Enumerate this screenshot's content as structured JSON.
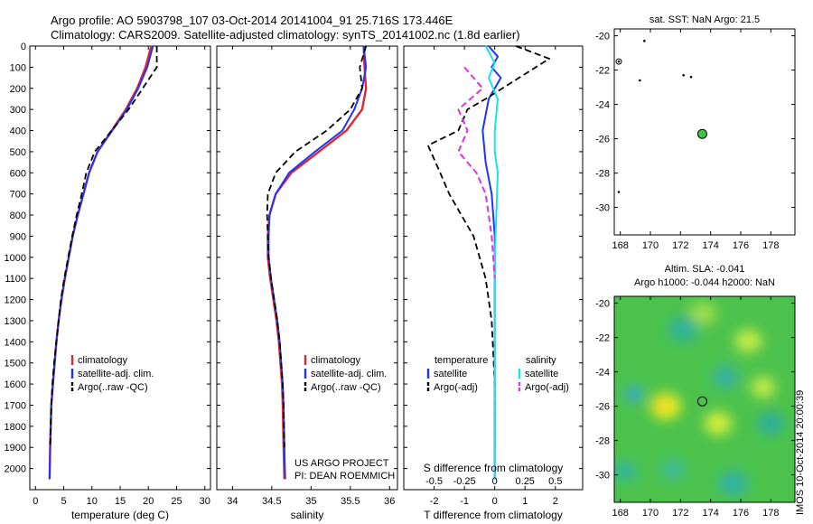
{
  "header": {
    "line1": "Argo profile: AO 5903798_107 03-Oct-2014 20141004_91 25.716S 173.446E",
    "line2": "Climatology: CARS2009. Satellite-adjusted climatology: synTS_20141002.nc (1.8d earlier)"
  },
  "watermark": "IMOS 10-Oct-2014 20:00:39",
  "credits": {
    "line1": "US ARGO PROJECT",
    "line2": "PI: DEAN ROEMMICH"
  },
  "colors": {
    "climatology": "#e0282f",
    "satellite": "#1f33ff",
    "argo": "#000000",
    "cyan": "#19e3e3",
    "magenta": "#e62ee6",
    "float": "#3cc83c"
  },
  "chart_data": [
    {
      "type": "line",
      "xlabel": "temperature (deg C)",
      "ylabel": "",
      "xlim": [
        -1,
        31
      ],
      "ylim": [
        2100,
        0
      ],
      "xticks": [
        "0",
        "5",
        "10",
        "15",
        "20",
        "25",
        "30"
      ],
      "yticks": [
        "0",
        "100",
        "200",
        "300",
        "400",
        "500",
        "600",
        "700",
        "800",
        "900",
        "1000",
        "1100",
        "1200",
        "1300",
        "1400",
        "1500",
        "1600",
        "1700",
        "1800",
        "1900",
        "2000"
      ],
      "legend": [
        "climatology",
        "satellite-adj. clim.",
        "Argo(..raw -QC)"
      ],
      "series": [
        {
          "name": "climatology",
          "style": "climatology",
          "x": [
            20.5,
            19.5,
            18.0,
            16.0,
            13.5,
            11.0,
            9.5,
            8.5,
            7.5,
            6.6,
            5.9,
            5.2,
            4.6,
            4.1,
            3.7,
            3.4,
            3.1,
            2.8,
            2.6,
            2.5
          ],
          "y": [
            0,
            100,
            200,
            300,
            400,
            500,
            600,
            700,
            800,
            900,
            1000,
            1100,
            1200,
            1300,
            1400,
            1500,
            1600,
            1700,
            1900,
            2050
          ]
        },
        {
          "name": "satellite-adj. clim.",
          "style": "satellite",
          "x": [
            20.8,
            19.8,
            18.2,
            16.2,
            13.6,
            11.0,
            9.5,
            8.5,
            7.5,
            6.6,
            5.9,
            5.2,
            4.6,
            4.1,
            3.7,
            3.4,
            3.1,
            2.8,
            2.6,
            2.5
          ],
          "y": [
            0,
            100,
            200,
            300,
            400,
            500,
            600,
            700,
            800,
            900,
            1000,
            1100,
            1200,
            1300,
            1400,
            1500,
            1600,
            1700,
            1900,
            2050
          ]
        },
        {
          "name": "Argo(..raw -QC)",
          "style": "argo",
          "x": [
            21.5,
            21.5,
            19.0,
            16.5,
            13.5,
            10.5,
            9.0,
            8.2,
            7.3,
            6.5,
            5.8,
            5.1,
            4.5,
            4.1,
            3.7,
            3.3,
            3.0,
            2.8,
            2.6
          ],
          "y": [
            0,
            100,
            200,
            300,
            400,
            500,
            600,
            700,
            800,
            900,
            1000,
            1100,
            1200,
            1300,
            1400,
            1500,
            1600,
            1700,
            1900
          ]
        }
      ]
    },
    {
      "type": "line",
      "xlabel": "salinity",
      "ylabel": "",
      "xlim": [
        33.8,
        36.1
      ],
      "ylim": [
        2100,
        0
      ],
      "xticks": [
        "34",
        "34.5",
        "35",
        "35.5",
        "36"
      ],
      "legend": [
        "climatology",
        "satellite-adj. clim.",
        "Argo(..raw -QC)"
      ],
      "series": [
        {
          "name": "climatology",
          "style": "climatology",
          "x": [
            35.67,
            35.68,
            35.7,
            35.65,
            35.45,
            35.1,
            34.75,
            34.55,
            34.47,
            34.45,
            34.45,
            34.48,
            34.52,
            34.56,
            34.59,
            34.61,
            34.63,
            34.64,
            34.65,
            34.66
          ],
          "y": [
            0,
            100,
            200,
            300,
            400,
            500,
            600,
            700,
            800,
            900,
            1000,
            1100,
            1200,
            1300,
            1400,
            1500,
            1600,
            1700,
            1900,
            2050
          ]
        },
        {
          "name": "satellite-adj. clim.",
          "style": "satellite",
          "x": [
            35.67,
            35.7,
            35.65,
            35.55,
            35.4,
            35.05,
            34.72,
            34.55,
            34.47,
            34.46,
            34.46,
            34.49,
            34.53,
            34.57,
            34.6,
            34.62,
            34.64,
            34.65,
            34.66,
            34.67
          ],
          "y": [
            0,
            100,
            200,
            300,
            400,
            500,
            600,
            700,
            800,
            900,
            1000,
            1100,
            1200,
            1300,
            1400,
            1500,
            1600,
            1700,
            1900,
            2050
          ]
        },
        {
          "name": "Argo(..raw -QC)",
          "style": "argo",
          "x": [
            35.7,
            35.62,
            35.65,
            35.5,
            35.2,
            34.8,
            34.55,
            34.45,
            34.44,
            34.45,
            34.46,
            34.49,
            34.53,
            34.57,
            34.6,
            34.62,
            34.64,
            34.65,
            34.66
          ],
          "y": [
            0,
            100,
            200,
            300,
            400,
            500,
            600,
            700,
            800,
            900,
            1000,
            1100,
            1200,
            1300,
            1400,
            1500,
            1600,
            1700,
            1900
          ]
        }
      ]
    },
    {
      "type": "line",
      "xlabel": "T difference from climatology",
      "xlabel2": "S difference from climatology",
      "ylabel": "",
      "xlim": [
        -3.0,
        2.9
      ],
      "ylim": [
        2100,
        0
      ],
      "xticks": [
        "-2",
        "-1",
        "0",
        "1",
        "2"
      ],
      "xticks2": [
        "-0.5",
        "-0.25",
        "0",
        "0.25",
        "0.5"
      ],
      "legend_titles": [
        "temperature",
        "salinity"
      ],
      "legend": [
        "satellite",
        "Argo(-adj)",
        "satellite",
        "Argo(-adj)"
      ],
      "series": [
        {
          "name": "satellite",
          "style": "satellite",
          "x": [
            -0.2,
            0.1,
            -0.1,
            0.2,
            -0.2,
            -0.4,
            -0.3,
            -0.1,
            0.0,
            0.0,
            0.0,
            0.0,
            0.0,
            0.0
          ],
          "y": [
            0,
            50,
            100,
            150,
            250,
            400,
            550,
            700,
            900,
            1100,
            1300,
            1500,
            1800,
            2050
          ]
        },
        {
          "name": "Argo(-adj)",
          "style": "argo",
          "x": [
            0.7,
            1.8,
            0.8,
            -0.3,
            -0.9,
            -1.2,
            -2.2,
            -1.8,
            -1.5,
            -0.7,
            -0.3,
            -0.1,
            0.0,
            0.0
          ],
          "y": [
            0,
            60,
            150,
            250,
            300,
            400,
            470,
            600,
            700,
            900,
            1100,
            1300,
            1600,
            1900
          ]
        },
        {
          "name": "satellite",
          "style": "cyan",
          "x": [
            -0.3,
            0.0,
            -0.2,
            0.1,
            0.0,
            0.0,
            0.1,
            0.05,
            0.0,
            0.0,
            0.0,
            0.0
          ],
          "y": [
            0,
            80,
            150,
            250,
            400,
            500,
            600,
            800,
            1000,
            1300,
            1600,
            2050
          ]
        },
        {
          "name": "Argo(-adj)",
          "style": "magenta",
          "x": [
            -1.0,
            -0.4,
            -1.2,
            -0.9,
            -1.2,
            -0.6,
            -0.3,
            -0.1,
            0.0
          ],
          "y": [
            100,
            200,
            300,
            400,
            500,
            600,
            700,
            900,
            1100
          ]
        }
      ]
    },
    {
      "type": "scatter",
      "title": "sat. SST: NaN Argo: 21.5",
      "xlim": [
        167.6,
        179.6
      ],
      "ylim": [
        -31.6,
        -19.6
      ],
      "xticks": [
        "168",
        "170",
        "172",
        "174",
        "176",
        "178"
      ],
      "yticks": [
        "-20",
        "-22",
        "-24",
        "-26",
        "-28",
        "-30"
      ],
      "float_position": {
        "lon": 173.446,
        "lat": -25.716
      },
      "points": [
        {
          "lon": 169.6,
          "lat": -20.3
        },
        {
          "lon": 167.9,
          "lat": -21.5
        },
        {
          "lon": 169.3,
          "lat": -22.6
        },
        {
          "lon": 172.2,
          "lat": -22.3
        },
        {
          "lon": 172.7,
          "lat": -22.4
        },
        {
          "lon": 167.9,
          "lat": -29.1
        }
      ]
    },
    {
      "type": "heatmap",
      "title": "Altim. SLA: -0.041",
      "title2": "Argo h1000: -0.044 h2000: NaN",
      "xlim": [
        167.6,
        179.6
      ],
      "ylim": [
        -31.6,
        -19.6
      ],
      "xticks": [
        "168",
        "170",
        "172",
        "174",
        "176",
        "178"
      ],
      "yticks": [
        "-20",
        "-22",
        "-24",
        "-26",
        "-28",
        "-30"
      ],
      "float_position": {
        "lon": 173.446,
        "lat": -25.716
      },
      "blobs": [
        {
          "lon": 171.0,
          "lat": -26.0,
          "r": 1.0,
          "color": "#f3f520"
        },
        {
          "lon": 170.8,
          "lat": -25.9,
          "r": 0.6,
          "color": "#f7d020"
        },
        {
          "lon": 174.5,
          "lat": -27.0,
          "r": 0.9,
          "color": "#d7ef3a"
        },
        {
          "lon": 176.5,
          "lat": -22.2,
          "r": 0.9,
          "color": "#c6ec46"
        },
        {
          "lon": 173.5,
          "lat": -20.6,
          "r": 0.9,
          "color": "#9ede4a"
        },
        {
          "lon": 168.9,
          "lat": -25.3,
          "r": 0.6,
          "color": "#3aa6d8"
        },
        {
          "lon": 172.2,
          "lat": -21.5,
          "r": 1.0,
          "color": "#2fb29a"
        },
        {
          "lon": 175.0,
          "lat": -24.3,
          "r": 0.9,
          "color": "#37b2a2"
        },
        {
          "lon": 168.3,
          "lat": -29.8,
          "r": 0.8,
          "color": "#36b59d"
        },
        {
          "lon": 175.5,
          "lat": -30.5,
          "r": 1.0,
          "color": "#35b2a3"
        },
        {
          "lon": 171.5,
          "lat": -29.7,
          "r": 0.8,
          "color": "#3cb999"
        },
        {
          "lon": 178.0,
          "lat": -27.0,
          "r": 0.9,
          "color": "#2dae9a"
        },
        {
          "lon": 177.5,
          "lat": -24.9,
          "r": 0.8,
          "color": "#c8ec48"
        }
      ]
    }
  ]
}
